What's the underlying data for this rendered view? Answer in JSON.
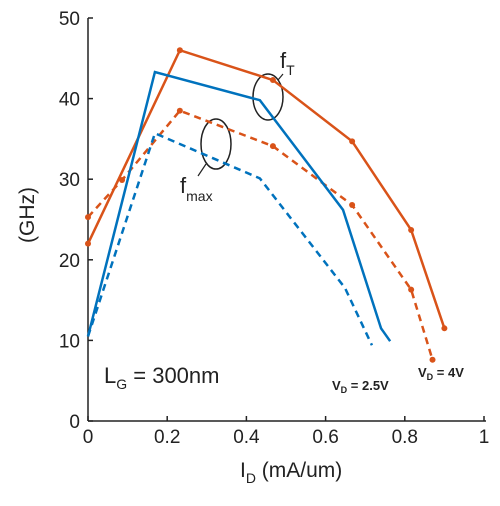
{
  "chart_data": {
    "type": "line",
    "x_label": {
      "text": "I",
      "sub": "D",
      "rest": " (mA/um)"
    },
    "y_label": "(GHz)",
    "xlim": [
      0,
      1
    ],
    "ylim": [
      0,
      50
    ],
    "xticks": [
      0,
      0.2,
      0.4,
      0.6,
      0.8,
      1
    ],
    "yticks": [
      0,
      10,
      20,
      30,
      40,
      50
    ],
    "series": [
      {
        "color": "#d95319",
        "style": "solid",
        "markers": true,
        "x": [
          0,
          0.232,
          0.467,
          0.667,
          0.816,
          0.9
        ],
        "values": [
          22,
          46,
          42.3,
          34.7,
          23.7,
          11.5
        ]
      },
      {
        "color": "#d95319",
        "style": "dashed",
        "markers": true,
        "x": [
          0,
          0.086,
          0.232,
          0.467,
          0.667,
          0.816,
          0.87
        ],
        "values": [
          25.3,
          29.9,
          38.5,
          34.1,
          26.8,
          16.3,
          7.6
        ]
      },
      {
        "color": "#0072bd",
        "style": "solid",
        "markers": false,
        "x": [
          0,
          0.169,
          0.434,
          0.644,
          0.74,
          0.763
        ],
        "values": [
          10.5,
          43.3,
          39.8,
          26.2,
          11.5,
          9.9
        ]
      },
      {
        "color": "#0072bd",
        "style": "dashed",
        "markers": false,
        "x": [
          0,
          0.169,
          0.434,
          0.649,
          0.717
        ],
        "values": [
          10.5,
          35.7,
          30.1,
          16.5,
          9.4
        ]
      }
    ],
    "annotations": {
      "ft": {
        "text": "f",
        "sub": "T"
      },
      "fmax": {
        "text": "f",
        "sub": "max"
      },
      "lg": {
        "text": "L",
        "sub": "G",
        "rest": " = 300nm"
      },
      "vd_blue": {
        "text": "V",
        "sub": "D",
        "rest": " = 2.5V",
        "color": "#0072bd"
      },
      "vd_orange": {
        "text": "V",
        "sub": "D",
        "rest": " = 4V",
        "color": "#d95319"
      }
    }
  }
}
